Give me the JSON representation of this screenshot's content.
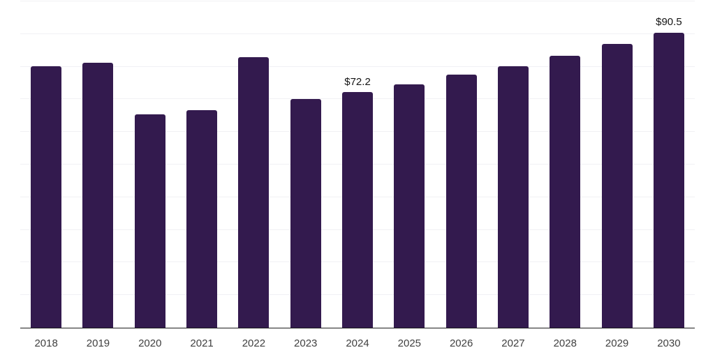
{
  "chart_data": {
    "type": "bar",
    "title": "",
    "xlabel": "",
    "ylabel": "",
    "categories": [
      "2018",
      "2019",
      "2020",
      "2021",
      "2022",
      "2023",
      "2024",
      "2025",
      "2026",
      "2027",
      "2028",
      "2029",
      "2030"
    ],
    "values": [
      80.2,
      81.3,
      65.4,
      66.7,
      83.0,
      70.0,
      72.2,
      74.6,
      77.5,
      80.2,
      83.4,
      86.9,
      90.5
    ],
    "point_labels": [
      "",
      "",
      "",
      "",
      "",
      "",
      "$72.2",
      "",
      "",
      "",
      "",
      "",
      "$90.5"
    ],
    "ylim": [
      0,
      100
    ],
    "gridline_step": 10,
    "grid": true,
    "legend_position": "none",
    "y_axis_labels_visible": false,
    "colors": {
      "bar": "#331a4e",
      "gridline": "#f1f1f4",
      "axis_line": "#1c1c1c",
      "tick_label": "#404040",
      "value_label": "#141414",
      "background": "#ffffff"
    }
  }
}
